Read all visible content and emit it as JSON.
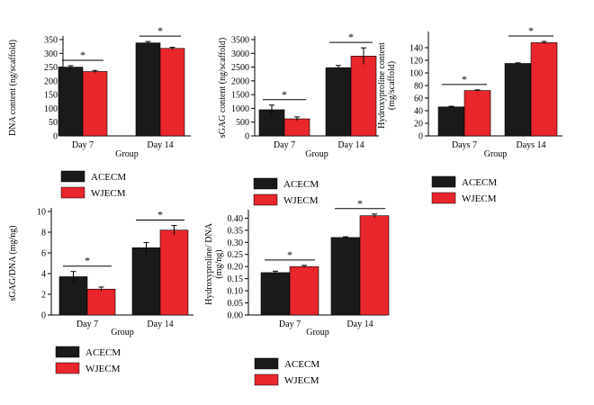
{
  "legend": {
    "entries": [
      "ACECM",
      "WJECM"
    ]
  },
  "colors": {
    "ACECM": "#1a1a1a",
    "WJECM": "#e8262b",
    "axis": "#000000"
  },
  "chart_data": [
    {
      "type": "bar",
      "id": "dna",
      "categories": [
        "Day 7",
        "Day 14"
      ],
      "series": [
        {
          "name": "ACECM",
          "values": [
            250,
            338
          ],
          "errors": [
            5,
            5
          ]
        },
        {
          "name": "WJECM",
          "values": [
            234,
            318
          ],
          "errors": [
            4,
            4
          ]
        }
      ],
      "ylabel": "DNA content (ng/scaffold)",
      "xlabel": "Group",
      "ylim": [
        0,
        350
      ],
      "yticks": [
        0,
        50,
        100,
        150,
        200,
        250,
        300,
        350
      ],
      "significance": [
        "*",
        "*"
      ]
    },
    {
      "type": "bar",
      "id": "sgag",
      "categories": [
        "Day 7",
        "Day 14"
      ],
      "series": [
        {
          "name": "ACECM",
          "values": [
            950,
            2480
          ],
          "errors": [
            170,
            80
          ]
        },
        {
          "name": "WJECM",
          "values": [
            620,
            2900
          ],
          "errors": [
            70,
            300
          ]
        }
      ],
      "ylabel": "sGAG content (ng/scaffold)",
      "xlabel": "Group",
      "ylim": [
        0,
        3500
      ],
      "yticks": [
        0,
        500,
        1000,
        1500,
        2000,
        2500,
        3000,
        3500
      ],
      "significance": [
        "*",
        "*"
      ]
    },
    {
      "type": "bar",
      "id": "hyp",
      "categories": [
        "Days 7",
        "Days 14"
      ],
      "series": [
        {
          "name": "ACECM",
          "values": [
            46,
            115
          ],
          "errors": [
            1,
            1
          ]
        },
        {
          "name": "WJECM",
          "values": [
            72,
            148
          ],
          "errors": [
            1,
            2
          ]
        }
      ],
      "ylabel": [
        "Hydroxyproline content",
        "(mg/scaffold)"
      ],
      "xlabel": "Group",
      "ylim": [
        0,
        160
      ],
      "yticks": [
        0,
        20,
        40,
        60,
        80,
        100,
        120,
        140
      ],
      "significance": [
        "*",
        "*"
      ]
    },
    {
      "type": "bar",
      "id": "sgagdna",
      "categories": [
        "Day 7",
        "Day 14"
      ],
      "series": [
        {
          "name": "ACECM",
          "values": [
            3.7,
            6.5
          ],
          "errors": [
            0.5,
            0.5
          ]
        },
        {
          "name": "WJECM",
          "values": [
            2.5,
            8.2
          ],
          "errors": [
            0.2,
            0.45
          ]
        }
      ],
      "ylabel": "sGAG/DNA (mg/ng)",
      "xlabel": "Group",
      "ylim": [
        0,
        10
      ],
      "yticks": [
        0,
        2,
        4,
        6,
        8,
        10
      ],
      "significance": [
        "*",
        "*"
      ]
    },
    {
      "type": "bar",
      "id": "hypdna",
      "categories": [
        "Day 7",
        "Day 14"
      ],
      "series": [
        {
          "name": "ACECM",
          "values": [
            0.175,
            0.32
          ],
          "errors": [
            0.006,
            0.003
          ]
        },
        {
          "name": "WJECM",
          "values": [
            0.2,
            0.41
          ],
          "errors": [
            0.005,
            0.007
          ]
        }
      ],
      "ylabel": [
        "Hydroxyproline/ DNA",
        "(mg/ng)"
      ],
      "xlabel": "Group",
      "ylim": [
        0,
        0.42
      ],
      "yticks": [
        0.0,
        0.05,
        0.1,
        0.15,
        0.2,
        0.25,
        0.3,
        0.35,
        0.4
      ],
      "tick_decimals": 2,
      "significance": [
        "*",
        "*"
      ]
    }
  ]
}
